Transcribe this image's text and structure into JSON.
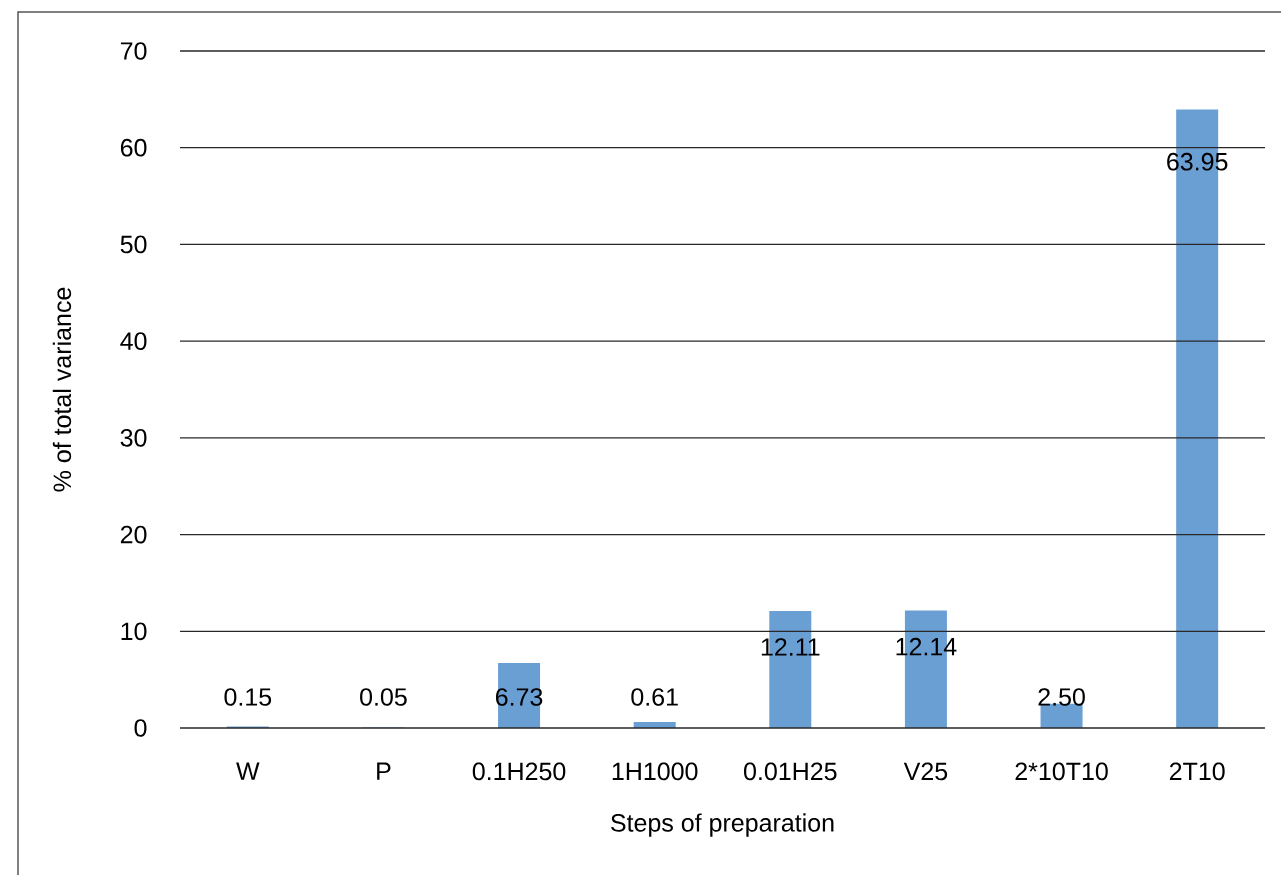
{
  "chart_data": {
    "type": "bar",
    "xlabel": "Steps of preparation",
    "ylabel": "% of total variance",
    "categories": [
      "W",
      "P",
      "0.1H250",
      "1H1000",
      "0.01H25",
      "V25",
      "2*10T10",
      "2T10"
    ],
    "values": [
      0.15,
      0.05,
      6.73,
      0.61,
      12.11,
      12.14,
      2.5,
      63.95
    ],
    "value_labels": [
      "0.15",
      "0.05",
      "6.73",
      "0.61",
      "12.11",
      "12.14",
      "2.50",
      "63.95"
    ],
    "color": "#6a9fd4",
    "ylim": [
      0,
      70
    ],
    "yticks": [
      0,
      10,
      20,
      30,
      40,
      50,
      60,
      70
    ],
    "grid": "y"
  }
}
